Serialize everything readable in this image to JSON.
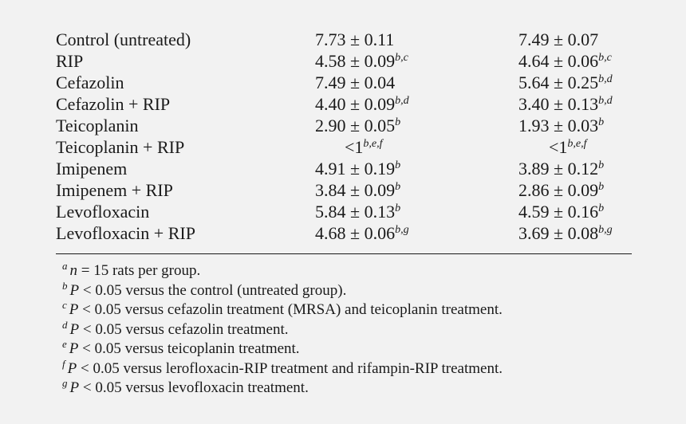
{
  "table": {
    "rows": [
      {
        "label": "Control (untreated)",
        "a_value": "7.73 ± 0.11",
        "a_sup": "",
        "b_value": "7.49 ± 0.07",
        "b_sup": ""
      },
      {
        "label": "RIP",
        "a_value": "4.58 ± 0.09",
        "a_sup": "b,c",
        "b_value": "4.64 ± 0.06",
        "b_sup": "b,c"
      },
      {
        "label": "Cefazolin",
        "a_value": "7.49 ± 0.04",
        "a_sup": "",
        "b_value": "5.64 ± 0.25",
        "b_sup": "b,d"
      },
      {
        "label": "Cefazolin + RIP",
        "a_value": "4.40 ± 0.09",
        "a_sup": "b,d",
        "b_value": "3.40 ± 0.13",
        "b_sup": "b,d"
      },
      {
        "label": "Teicoplanin",
        "a_value": "2.90 ± 0.05",
        "a_sup": "b",
        "b_value": "1.93 ± 0.03",
        "b_sup": "b"
      },
      {
        "label": "Teicoplanin + RIP",
        "a_value": "<1",
        "a_sup": "b,e,f",
        "b_value": "<1",
        "b_sup": "b,e,f",
        "centered": true
      },
      {
        "label": "Imipenem",
        "a_value": "4.91 ± 0.19",
        "a_sup": "b",
        "b_value": "3.89 ± 0.12",
        "b_sup": "b"
      },
      {
        "label": "Imipenem + RIP",
        "a_value": "3.84 ± 0.09",
        "a_sup": "b",
        "b_value": "2.86 ± 0.09",
        "b_sup": "b"
      },
      {
        "label": "Levofloxacin",
        "a_value": "5.84 ± 0.13",
        "a_sup": "b",
        "b_value": "4.59 ± 0.16",
        "b_sup": "b"
      },
      {
        "label": "Levofloxacin + RIP",
        "a_value": "4.68 ± 0.06",
        "a_sup": "b,g",
        "b_value": "3.69 ± 0.08",
        "b_sup": "b,g"
      }
    ]
  },
  "footnotes": [
    {
      "mark": "a",
      "var": "n",
      "text": " = 15 rats per group."
    },
    {
      "mark": "b",
      "var": "P",
      "text": " < 0.05 versus the control (untreated group)."
    },
    {
      "mark": "c",
      "var": "P",
      "text": " < 0.05 versus cefazolin treatment (MRSA) and teicoplanin treatment."
    },
    {
      "mark": "d",
      "var": "P",
      "text": " < 0.05 versus cefazolin treatment."
    },
    {
      "mark": "e",
      "var": "P",
      "text": " < 0.05 versus teicoplanin treatment."
    },
    {
      "mark": "f",
      "var": "P",
      "text": " < 0.05 versus lerofloxacin-RIP treatment and rifampin-RIP treatment."
    },
    {
      "mark": "g",
      "var": "P",
      "text": " < 0.05 versus levofloxacin treatment."
    }
  ]
}
